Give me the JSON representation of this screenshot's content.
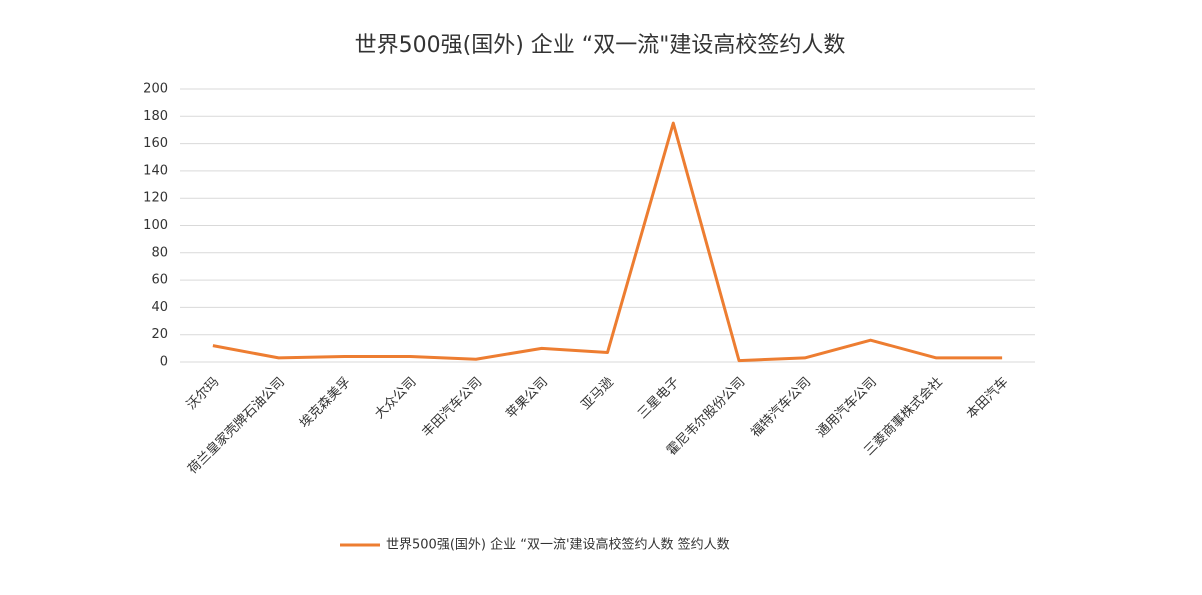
{
  "chart_data": {
    "type": "line",
    "title": "世界500强(国外) 企业 “双一流\"建设高校签约人数",
    "categories": [
      "沃尔玛",
      "荷兰皇家壳牌石油公司",
      "埃克森美孚",
      "大众公司",
      "丰田汽车公司",
      "苹果公司",
      "亚马逊",
      "三星电子",
      "霍尼韦尔股份公司",
      "福特汽车公司",
      "通用汽车公司",
      "三菱商事株式会社",
      "本田汽车"
    ],
    "series": [
      {
        "name": "世界500强(国外) 企业 “双一流'建设高校签约人数 签约人数",
        "color": "#ed7d31",
        "values": [
          12,
          3,
          4,
          4,
          2,
          10,
          7,
          175,
          1,
          3,
          16,
          3,
          3
        ]
      }
    ],
    "ylim": [
      0,
      200
    ],
    "yticks": [
      0,
      20,
      40,
      60,
      80,
      100,
      120,
      140,
      160,
      180,
      200
    ],
    "grid": true,
    "legend": "bottom"
  }
}
